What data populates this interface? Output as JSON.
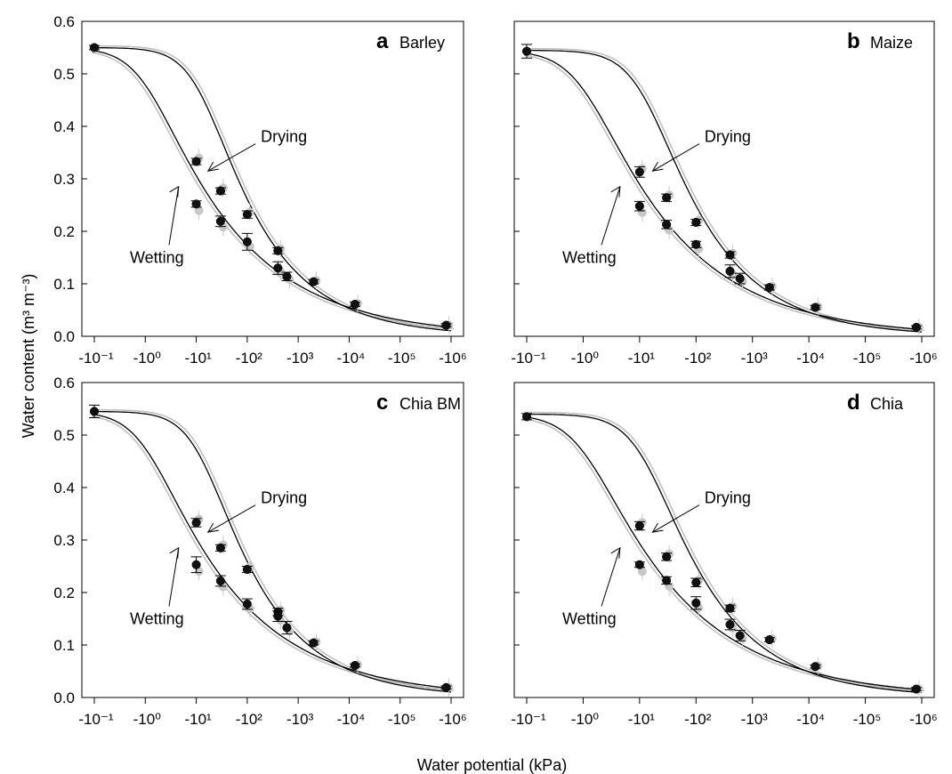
{
  "figure": {
    "ylabel": "Water content (m³ m⁻³)",
    "xlabel": "Water potential (kPa)",
    "x_tick_labels": [
      "-10⁻¹",
      "-10⁰",
      "-10¹",
      "-10²",
      "-10³",
      "-10⁴",
      "-10⁵",
      "-10⁶"
    ],
    "y_tick_labels": [
      "0.0",
      "0.1",
      "0.2",
      "0.3",
      "0.4",
      "0.5",
      "0.6"
    ]
  },
  "chart_data": [
    {
      "type": "scatter",
      "panel_letter": "a",
      "panel_name": "Barley",
      "x_scale": "log of negative water potential",
      "xlim": [
        0.1,
        1000000
      ],
      "ylim": [
        0,
        0.6
      ],
      "annotations": [
        "Drying",
        "Wetting"
      ],
      "drying_curve": {
        "theta_r": 0.0,
        "theta_s": 0.55,
        "alpha": 0.08,
        "n": 1.35
      },
      "wetting_curve": {
        "theta_r": 0.0,
        "theta_s": 0.55,
        "alpha": 1.0,
        "n": 1.25
      },
      "series": [
        {
          "x": [
            0.1,
            10,
            30,
            100,
            400,
            2000,
            13000,
            800000
          ],
          "y": [
            0.55,
            0.333,
            0.277,
            0.232,
            0.163,
            0.104,
            0.061,
            0.021
          ],
          "err": [
            0.004,
            0.006,
            0.006,
            0.007,
            0.006,
            0.004,
            0.004,
            0.003
          ]
        },
        {
          "x": [
            10,
            30,
            100,
            400,
            600
          ],
          "y": [
            0.252,
            0.219,
            0.18,
            0.13,
            0.114
          ],
          "err": [
            0.006,
            0.01,
            0.016,
            0.012,
            0.008
          ]
        }
      ]
    },
    {
      "type": "scatter",
      "panel_letter": "b",
      "panel_name": "Maize",
      "x_scale": "log of negative water potential",
      "xlim": [
        0.1,
        1000000
      ],
      "ylim": [
        0,
        0.6
      ],
      "annotations": [
        "Drying",
        "Wetting"
      ],
      "drying_curve": {
        "theta_r": 0.0,
        "theta_s": 0.545,
        "alpha": 0.08,
        "n": 1.37
      },
      "wetting_curve": {
        "theta_r": 0.0,
        "theta_s": 0.545,
        "alpha": 1.0,
        "n": 1.27
      },
      "series": [
        {
          "x": [
            0.1,
            10,
            30,
            100,
            400,
            2000,
            13000,
            800000
          ],
          "y": [
            0.543,
            0.313,
            0.264,
            0.217,
            0.155,
            0.093,
            0.055,
            0.017
          ],
          "err": [
            0.013,
            0.01,
            0.007,
            0.006,
            0.006,
            0.005,
            0.004,
            0.003
          ]
        },
        {
          "x": [
            10,
            30,
            100,
            400,
            600
          ],
          "y": [
            0.248,
            0.213,
            0.175,
            0.124,
            0.11
          ],
          "err": [
            0.009,
            0.008,
            0.006,
            0.012,
            0.01
          ]
        }
      ]
    },
    {
      "type": "scatter",
      "panel_letter": "c",
      "panel_name": "Chia BM",
      "x_scale": "log of negative water potential",
      "xlim": [
        0.1,
        1000000
      ],
      "ylim": [
        0,
        0.6
      ],
      "annotations": [
        "Drying",
        "Wetting"
      ],
      "drying_curve": {
        "theta_r": 0.0,
        "theta_s": 0.545,
        "alpha": 0.08,
        "n": 1.35
      },
      "wetting_curve": {
        "theta_r": 0.0,
        "theta_s": 0.545,
        "alpha": 1.0,
        "n": 1.25
      },
      "series": [
        {
          "x": [
            0.1,
            10,
            30,
            100,
            400,
            2000,
            13000,
            800000
          ],
          "y": [
            0.545,
            0.333,
            0.285,
            0.244,
            0.163,
            0.104,
            0.061,
            0.019
          ],
          "err": [
            0.012,
            0.008,
            0.006,
            0.006,
            0.007,
            0.004,
            0.003,
            0.003
          ]
        },
        {
          "x": [
            10,
            30,
            100,
            400,
            600
          ],
          "y": [
            0.253,
            0.222,
            0.178,
            0.155,
            0.133
          ],
          "err": [
            0.015,
            0.01,
            0.01,
            0.01,
            0.012
          ]
        }
      ]
    },
    {
      "type": "scatter",
      "panel_letter": "d",
      "panel_name": "Chia",
      "x_scale": "log of negative water potential",
      "xlim": [
        0.1,
        1000000
      ],
      "ylim": [
        0,
        0.6
      ],
      "annotations": [
        "Drying",
        "Wetting"
      ],
      "drying_curve": {
        "theta_r": 0.0,
        "theta_s": 0.54,
        "alpha": 0.08,
        "n": 1.36
      },
      "wetting_curve": {
        "theta_r": 0.0,
        "theta_s": 0.54,
        "alpha": 1.0,
        "n": 1.26
      },
      "series": [
        {
          "x": [
            0.1,
            10,
            30,
            100,
            400,
            2000,
            13000,
            800000
          ],
          "y": [
            0.535,
            0.327,
            0.268,
            0.219,
            0.17,
            0.11,
            0.059,
            0.016
          ],
          "err": [
            0.006,
            0.008,
            0.007,
            0.008,
            0.006,
            0.004,
            0.003,
            0.003
          ]
        },
        {
          "x": [
            10,
            30,
            100,
            400,
            600
          ],
          "y": [
            0.253,
            0.223,
            0.18,
            0.139,
            0.118
          ],
          "err": [
            0.005,
            0.007,
            0.012,
            0.01,
            0.01
          ]
        }
      ]
    }
  ]
}
